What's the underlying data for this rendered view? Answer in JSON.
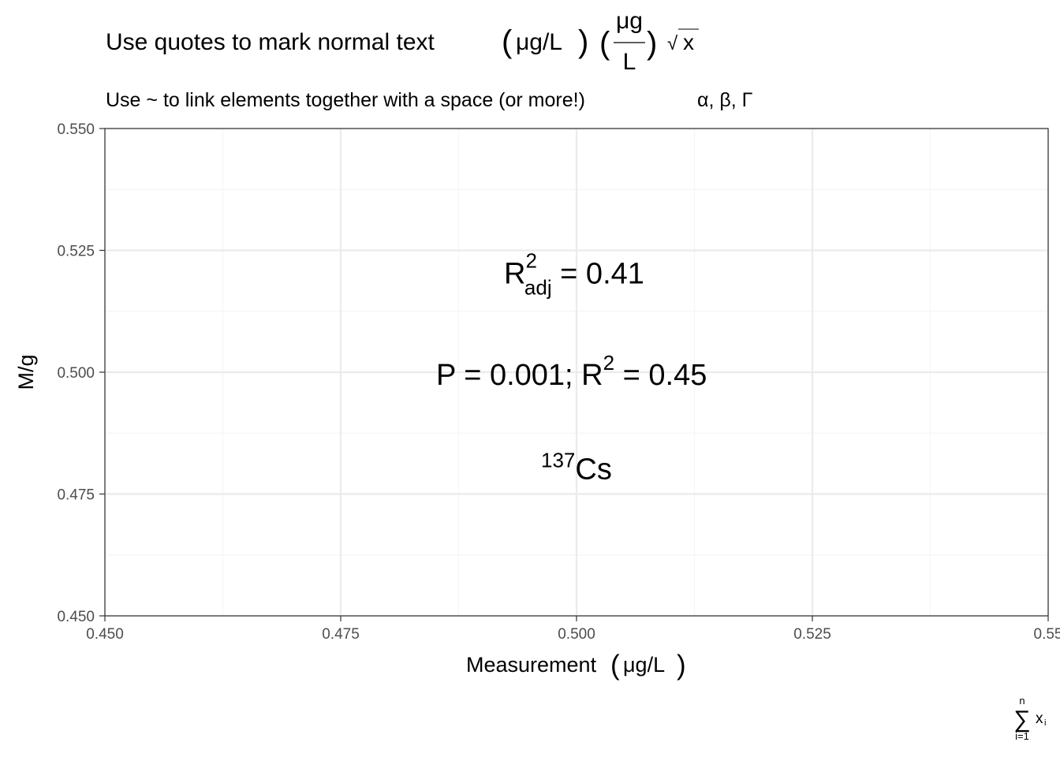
{
  "chart_data": {
    "type": "scatter",
    "title": {
      "main": "Use quotes to mark normal text",
      "unit_open": "(",
      "unit_text": "μg/L",
      "unit_close": ")",
      "frac_open": "(",
      "frac_num": "μg",
      "frac_den": "L",
      "frac_close": ")",
      "sqrt_symbol": "√",
      "sqrt_arg": "x"
    },
    "subtitle": {
      "text": "Use ~ to link elements together with a space (or more!)",
      "greek": "α, β, Γ"
    },
    "xlabel": {
      "text": "Measurement",
      "unit_open": "(",
      "unit": "μg/L",
      "unit_close": ")"
    },
    "ylabel": "M/g",
    "xlim": [
      0.45,
      0.55
    ],
    "ylim": [
      0.45,
      0.55
    ],
    "x_ticks": [
      0.45,
      0.475,
      0.5,
      0.525,
      0.55
    ],
    "x_tick_labels": [
      "0.450",
      "0.475",
      "0.500",
      "0.525",
      "0.55"
    ],
    "x_minor": [
      0.4625,
      0.4875,
      0.5125,
      0.5375
    ],
    "y_ticks": [
      0.45,
      0.475,
      0.5,
      0.525,
      0.55
    ],
    "y_tick_labels": [
      "0.450",
      "0.475",
      "0.500",
      "0.525",
      "0.550"
    ],
    "y_minor": [
      0.4625,
      0.4875,
      0.5125,
      0.5375
    ],
    "grid": true,
    "annotations": [
      {
        "id": "r2-adj",
        "x": 0.5,
        "y": 0.52,
        "base": "R",
        "sup": "2",
        "sub": "adj",
        "rest": " = 0.41"
      },
      {
        "id": "p-value",
        "x": 0.5,
        "y": 0.5,
        "base": "P = 0.001; R",
        "sup": "2",
        "rest": " = 0.45"
      },
      {
        "id": "cesium",
        "x": 0.5,
        "y": 0.48,
        "pre_sup": "137",
        "base": "Cs"
      }
    ],
    "caption": {
      "sum_symbol": "∑",
      "upper": "n",
      "lower": "i=1",
      "term": "x",
      "term_sub": "i"
    },
    "colors": {
      "background": "#ffffff",
      "panel_border": "#333333",
      "grid_major": "#ebebeb",
      "grid_minor": "#f5f5f5",
      "tick_text": "#4d4d4d",
      "text": "#000000"
    }
  }
}
